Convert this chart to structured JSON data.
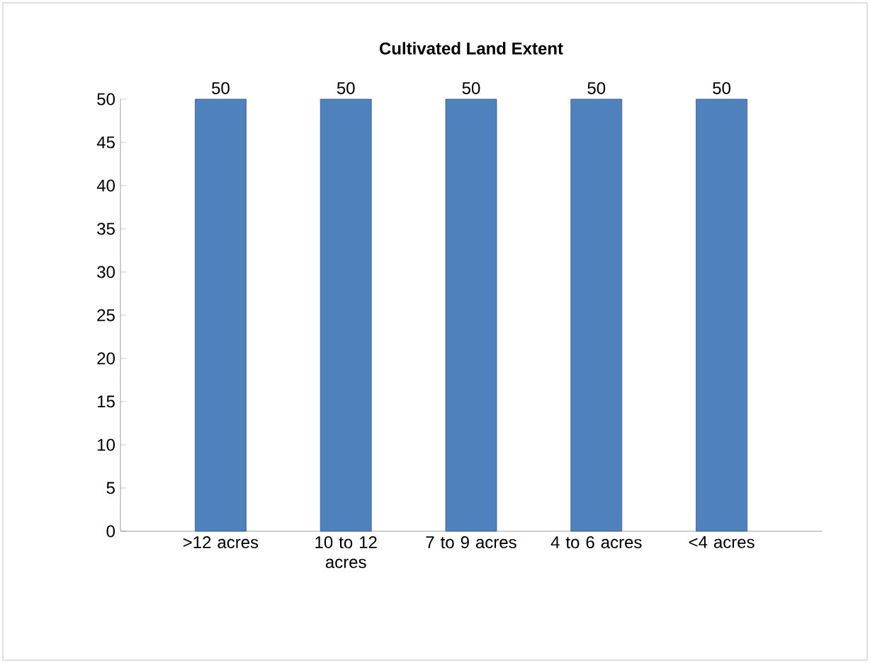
{
  "chart_data": {
    "type": "bar",
    "title": "Cultivated Land Extent",
    "categories": [
      ">12 acres",
      "10 to 12 acres",
      "7 to 9 acres",
      "4 to 6 acres",
      "<4 acres"
    ],
    "values": [
      50,
      50,
      50,
      50,
      50
    ],
    "color": "#4f81bd",
    "ylim": [
      0,
      50
    ],
    "yticks": [
      0,
      5,
      10,
      15,
      20,
      25,
      30,
      35,
      40,
      45,
      50
    ],
    "data_labels": true,
    "grid": false
  }
}
